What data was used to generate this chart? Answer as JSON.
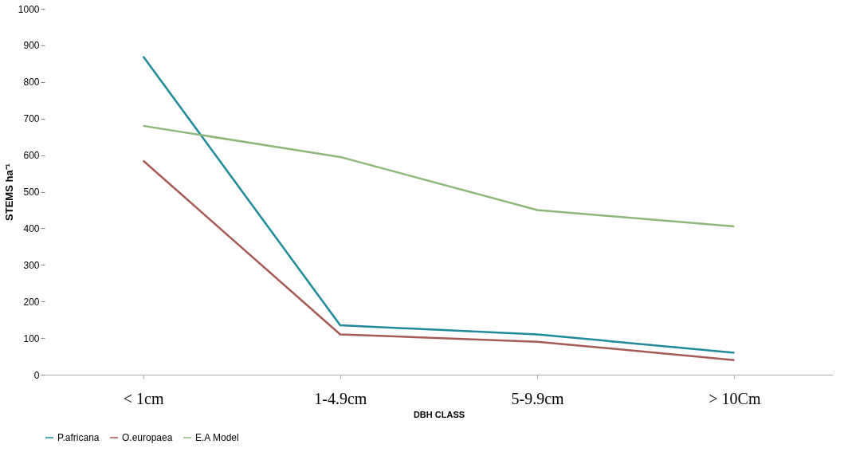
{
  "chart_data": {
    "type": "line",
    "xlabel": "DBH CLASS",
    "ylabel": "STEMS ha⁻¹",
    "categories": [
      "< 1cm",
      "1-4.9cm",
      "5-9.9cm",
      "> 10Cm"
    ],
    "series": [
      {
        "name": "P.africana",
        "color": "#1f8a9a",
        "values": [
          870,
          135,
          110,
          60
        ]
      },
      {
        "name": "O.europaea",
        "color": "#a65a55",
        "values": [
          585,
          110,
          90,
          40
        ]
      },
      {
        "name": "E.A Model",
        "color": "#8db87a",
        "values": [
          680,
          595,
          450,
          405
        ]
      }
    ],
    "ylim": [
      0,
      1000
    ],
    "yticks": [
      0,
      100,
      200,
      300,
      400,
      500,
      600,
      700,
      800,
      900,
      1000
    ],
    "grid": false,
    "legend": "bottom",
    "marker": "none"
  }
}
